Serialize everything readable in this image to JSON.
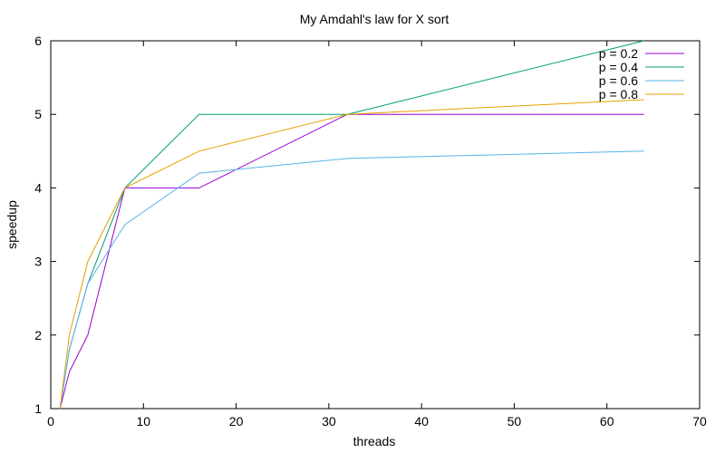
{
  "chart_data": {
    "type": "line",
    "title": "My Amdahl's law for X sort",
    "xlabel": "threads",
    "ylabel": "speedup",
    "xlim": [
      0,
      70
    ],
    "ylim": [
      1,
      6
    ],
    "xticks": [
      0,
      10,
      20,
      30,
      40,
      50,
      60,
      70
    ],
    "yticks": [
      1,
      2,
      3,
      4,
      5,
      6
    ],
    "xtick_labels": [
      "0",
      "10",
      "20",
      "30",
      "40",
      "50",
      "60",
      "70"
    ],
    "ytick_labels": [
      "1",
      "2",
      "3",
      "4",
      "5",
      "6"
    ],
    "grid": false,
    "legend_position": "top-right",
    "x": [
      1,
      2,
      4,
      8,
      16,
      32,
      64
    ],
    "series": [
      {
        "name": "p = 0.2",
        "color": "#9400d3",
        "values": [
          1,
          1.5,
          2,
          4,
          4,
          5,
          5
        ]
      },
      {
        "name": "p = 0.4",
        "color": "#009e73",
        "values": [
          1,
          1.8,
          2.7,
          4,
          5,
          5,
          6
        ]
      },
      {
        "name": "p = 0.6",
        "color": "#56b4e9",
        "values": [
          1,
          1.8,
          2.7,
          3.5,
          4.2,
          4.4,
          4.5
        ]
      },
      {
        "name": "p = 0.8",
        "color": "#e69f00",
        "values": [
          1,
          2,
          3,
          4,
          4.5,
          5,
          5.2
        ]
      }
    ]
  }
}
